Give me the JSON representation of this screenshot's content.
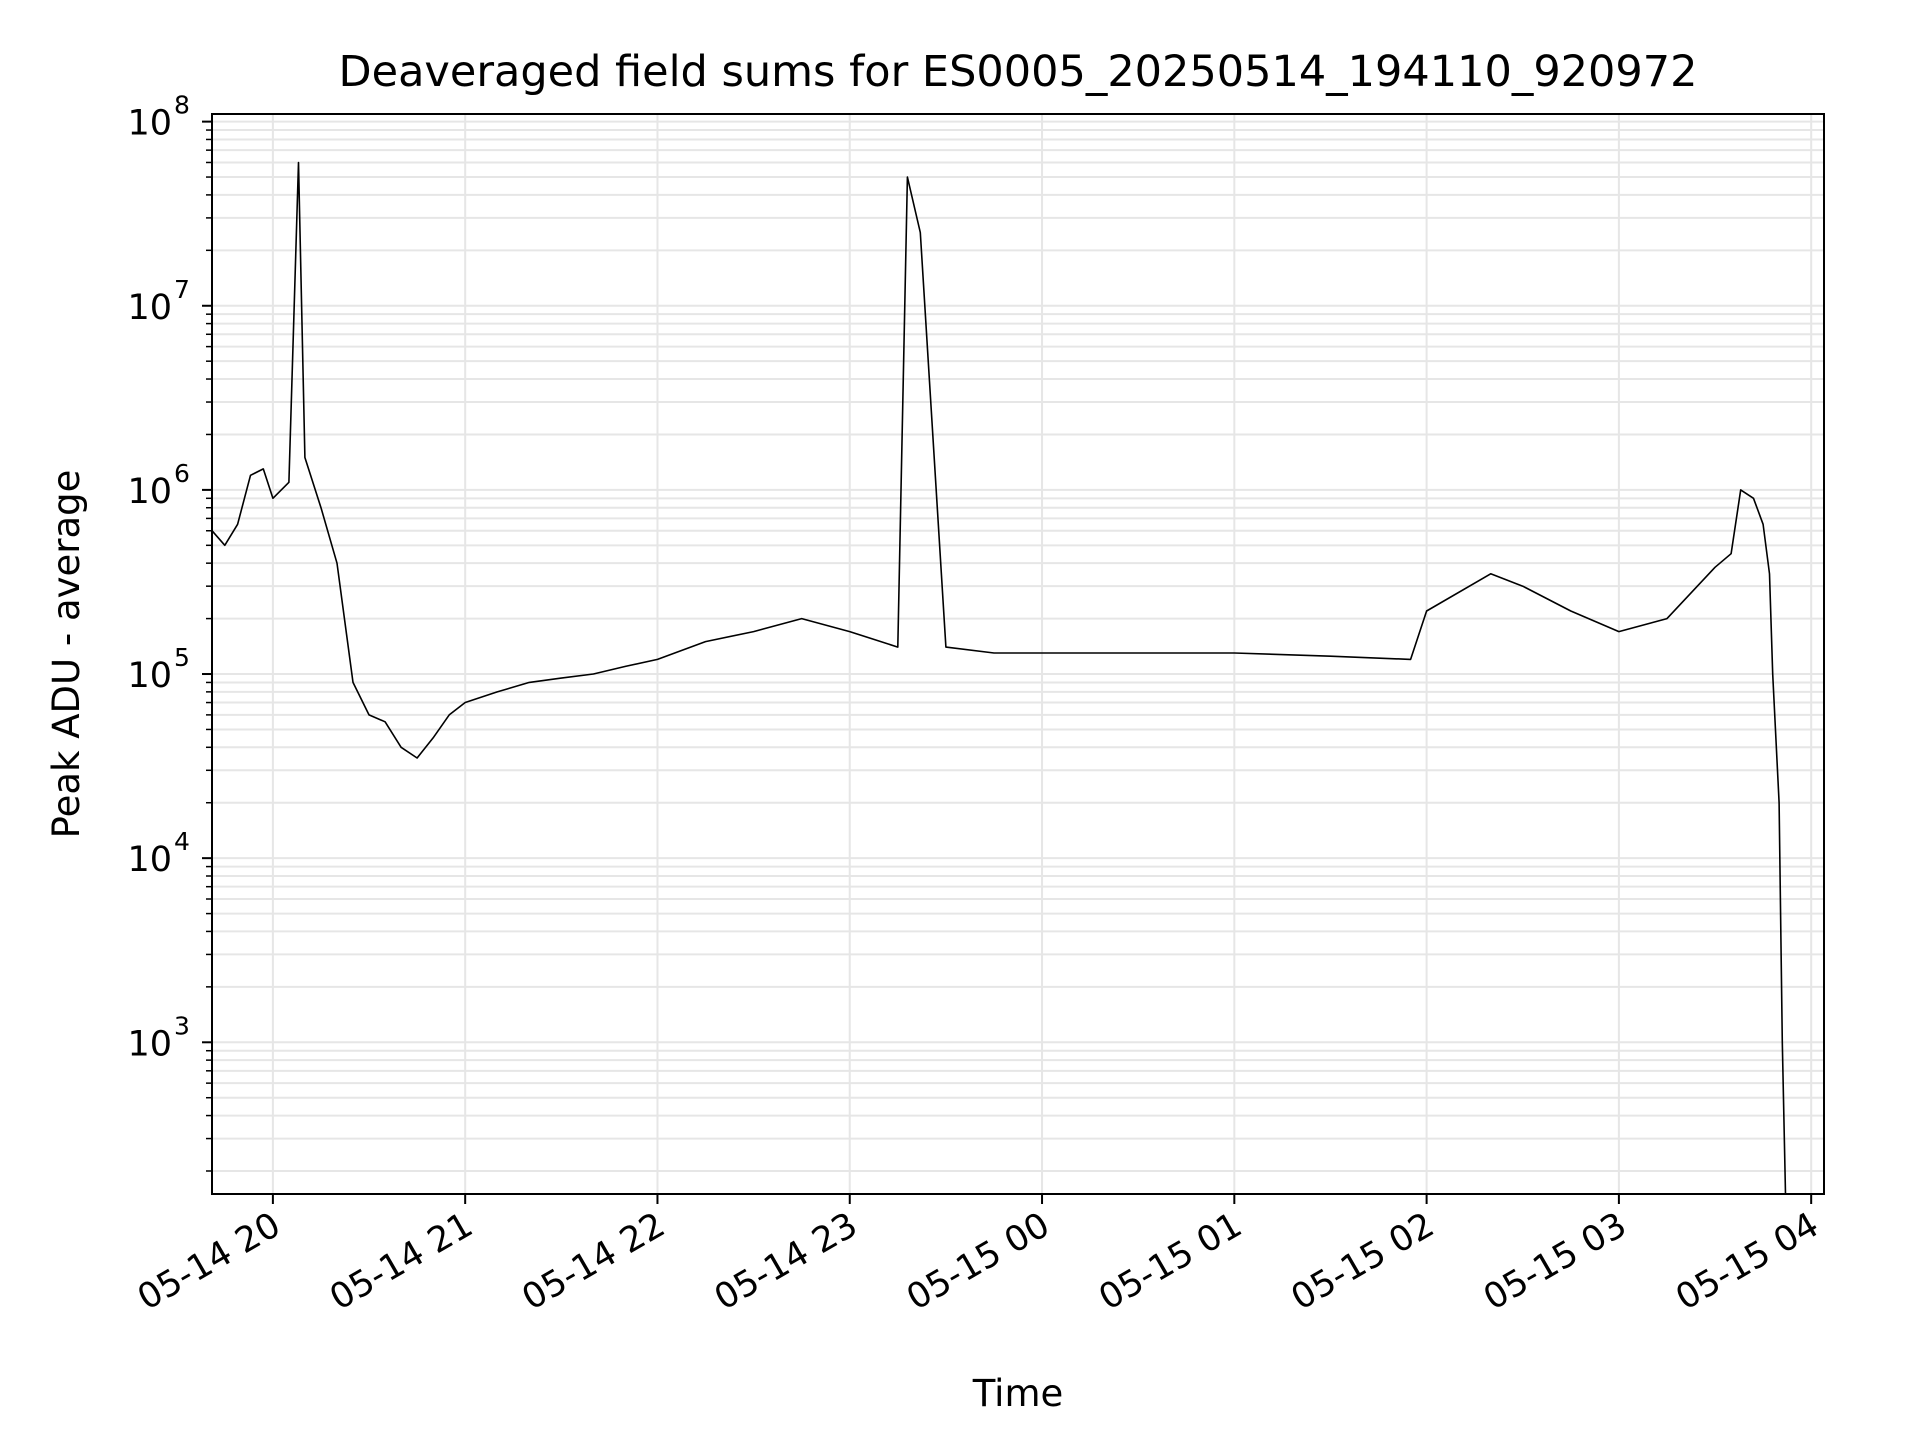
{
  "chart_data": {
    "type": "line",
    "title": "Deaveraged field sums for ES0005_20250514_194110_920972",
    "xlabel": "Time",
    "ylabel": "Peak ADU - average",
    "yscale": "log",
    "ylim": [
      150,
      110000000
    ],
    "xlim": [
      "05-14 19:41",
      "05-15 04:04"
    ],
    "grid": true,
    "line_color": "#000000",
    "grid_color": "#e6e6e6",
    "x_ticks": [
      "05-14 20",
      "05-14 21",
      "05-14 22",
      "05-14 23",
      "05-15 00",
      "05-15 01",
      "05-15 02",
      "05-15 03",
      "05-15 04"
    ],
    "y_ticks": [
      {
        "base": "10",
        "exp": "3",
        "value": 1000
      },
      {
        "base": "10",
        "exp": "4",
        "value": 10000
      },
      {
        "base": "10",
        "exp": "5",
        "value": 100000
      },
      {
        "base": "10",
        "exp": "6",
        "value": 1000000
      },
      {
        "base": "10",
        "exp": "7",
        "value": 10000000
      },
      {
        "base": "10",
        "exp": "8",
        "value": 100000000
      }
    ],
    "series": [
      {
        "x": [
          "05-14 19:41",
          "05-14 19:45",
          "05-14 19:49",
          "05-14 19:53",
          "05-14 19:57",
          "05-14 20:00",
          "05-14 20:05",
          "05-14 20:08",
          "05-14 20:10",
          "05-14 20:15",
          "05-14 20:20",
          "05-14 20:25",
          "05-14 20:30",
          "05-14 20:35",
          "05-14 20:40",
          "05-14 20:45",
          "05-14 20:50",
          "05-14 20:55",
          "05-14 21:00",
          "05-14 21:10",
          "05-14 21:20",
          "05-14 21:30",
          "05-14 21:40",
          "05-14 21:50",
          "05-14 22:00",
          "05-14 22:15",
          "05-14 22:30",
          "05-14 22:45",
          "05-14 23:00",
          "05-14 23:15",
          "05-14 23:18",
          "05-14 23:22",
          "05-14 23:30",
          "05-14 23:45",
          "05-15 00:00",
          "05-15 00:30",
          "05-15 01:00",
          "05-15 01:30",
          "05-15 01:55",
          "05-15 02:00",
          "05-15 02:20",
          "05-15 02:30",
          "05-15 02:45",
          "05-15 03:00",
          "05-15 03:15",
          "05-15 03:30",
          "05-15 03:35",
          "05-15 03:38",
          "05-15 03:42",
          "05-15 03:45",
          "05-15 03:47",
          "05-15 03:48",
          "05-15 03:50",
          "05-15 03:51",
          "05-15 03:52"
        ],
        "y": [
          600000,
          500000,
          650000,
          1200000,
          1300000,
          900000,
          1100000,
          60000000,
          1500000,
          800000,
          400000,
          90000,
          60000,
          55000,
          40000,
          35000,
          45000,
          60000,
          70000,
          80000,
          90000,
          95000,
          100000,
          110000,
          120000,
          150000,
          170000,
          200000,
          170000,
          140000,
          50000000,
          25000000,
          140000,
          130000,
          130000,
          130000,
          130000,
          125000,
          120000,
          220000,
          350000,
          300000,
          220000,
          170000,
          200000,
          380000,
          450000,
          1000000,
          900000,
          650000,
          350000,
          100000,
          20000,
          1000,
          150
        ]
      }
    ],
    "annotations": []
  }
}
